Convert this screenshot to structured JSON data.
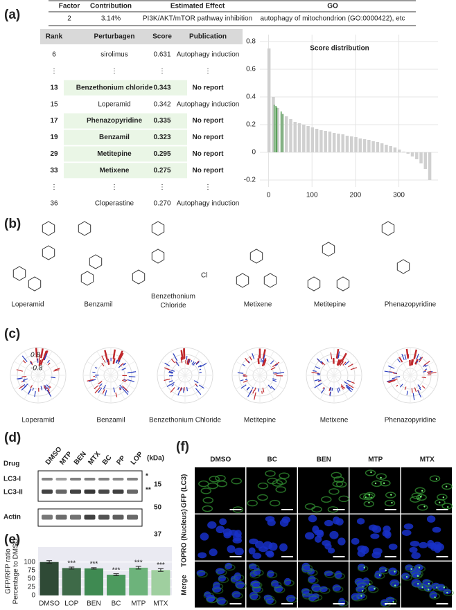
{
  "panel_labels": [
    "(a)",
    "(b)",
    "(c)",
    "(d)",
    "(e)",
    "(f)"
  ],
  "factor_table": {
    "headers": [
      "Factor",
      "Contribution",
      "Estimated Effect",
      "GO"
    ],
    "row": [
      "2",
      "3.14%",
      "PI3K/AKT/mTOR pathway inhibition",
      "autophagy of mitochondrion (GO:0000422), etc"
    ]
  },
  "rank_table": {
    "headers": [
      "Rank",
      "Perturbagen",
      "Score",
      "Publication"
    ],
    "rows": [
      [
        "6",
        "sirolimus",
        "0.631",
        "Autophagy induction"
      ],
      [
        "⋮",
        "⋮",
        "⋮",
        "⋮"
      ],
      [
        "13",
        "Benzethonium chloride",
        "0.343",
        "No report"
      ],
      [
        "15",
        "Loperamid",
        "0.342",
        "Autophagy induction"
      ],
      [
        "17",
        "Phenazopyridine",
        "0.335",
        "No report"
      ],
      [
        "19",
        "Benzamil",
        "0.323",
        "No report"
      ],
      [
        "29",
        "Metitepine",
        "0.295",
        "No report"
      ],
      [
        "33",
        "Metixene",
        "0.275",
        "No report"
      ],
      [
        "⋮",
        "⋮",
        "⋮",
        "⋮"
      ],
      [
        "36",
        "Cloperastine",
        "0.270",
        "Autophagy induction"
      ]
    ],
    "highlighted": [
      false,
      false,
      true,
      false,
      true,
      true,
      true,
      true,
      false,
      false
    ]
  },
  "chart_data": [
    {
      "type": "bar",
      "title": "Score distribution",
      "series": [
        {
          "name": "all",
          "color": "#d0d0d0",
          "x": [
            1,
            11,
            21,
            31,
            41,
            51,
            61,
            71,
            81,
            91,
            101,
            111,
            121,
            131,
            141,
            151,
            161,
            171,
            181,
            191,
            201,
            211,
            221,
            231,
            241,
            251,
            261,
            271,
            281,
            291,
            301,
            311,
            321,
            331,
            341,
            351,
            361,
            371
          ],
          "values": [
            0.75,
            0.4,
            0.32,
            0.28,
            0.26,
            0.24,
            0.22,
            0.21,
            0.2,
            0.19,
            0.18,
            0.17,
            0.16,
            0.155,
            0.15,
            0.14,
            0.135,
            0.13,
            0.12,
            0.115,
            0.11,
            0.1,
            0.095,
            0.09,
            0.08,
            0.075,
            0.065,
            0.055,
            0.045,
            0.035,
            0.02,
            0.005,
            -0.01,
            -0.03,
            -0.05,
            -0.08,
            -0.12,
            -0.2
          ]
        },
        {
          "name": "highlighted",
          "color": "#5aa05a",
          "x": [
            13,
            17,
            19,
            29,
            33
          ],
          "values": [
            0.343,
            0.335,
            0.323,
            0.295,
            0.275
          ]
        }
      ],
      "xlim": [
        -20,
        390
      ],
      "xticks": [
        0,
        100,
        200,
        300
      ],
      "ylim": [
        -0.25,
        0.85
      ],
      "yticks": [
        -0.2,
        0.0,
        0.2,
        0.4,
        0.6,
        0.8
      ],
      "grid": true
    },
    {
      "type": "bar",
      "ylabel": [
        "GFP/RFP ratio",
        "Percentage to DMSO"
      ],
      "categories": [
        "DMSO",
        "LOP",
        "BEN",
        "BC",
        "MTP",
        "MTX"
      ],
      "values": [
        100,
        82,
        81,
        62,
        83,
        76
      ],
      "errors": [
        4,
        3,
        2,
        3,
        4,
        4
      ],
      "significance": [
        null,
        "***",
        "***",
        "***",
        "***",
        "***"
      ],
      "colors": [
        "#2f4a36",
        "#3e6a48",
        "#3f8a52",
        "#4c9a5e",
        "#6db37b",
        "#9fcf9f"
      ],
      "ylim": [
        0,
        145
      ],
      "yticks": [
        0,
        25,
        50,
        75,
        100
      ],
      "grid": true
    }
  ],
  "structures": {
    "names": [
      "Loperamid",
      "Benzamil",
      "Benzethonium Chloride",
      "Metixene",
      "Metitepine",
      "Phenazopyridine"
    ],
    "counterion": "Cl"
  },
  "polar": {
    "names": [
      "Loperamid",
      "Benzamil",
      "Benzethonium Chloride",
      "Metitepine",
      "Metixene",
      "Phenazopyridine"
    ],
    "outer_label": "0.8",
    "inner_label": "-0.8"
  },
  "blot": {
    "row_label": "Drug",
    "lanes": [
      "DMSO",
      "MTP",
      "BEN",
      "MTX",
      "BC",
      "PP",
      "LOP"
    ],
    "unit": "(kDa)",
    "bands": [
      "LC3-I",
      "LC3-II",
      "Actin"
    ],
    "stars": [
      "*",
      "**"
    ],
    "markers": [
      "15",
      "50",
      "37"
    ]
  },
  "microscopy": {
    "columns": [
      "DMSO",
      "BC",
      "BEN",
      "MTP",
      "MTX"
    ],
    "rows": [
      "GFP (LC3)",
      "TOPRO (Nucleus)",
      "Merge"
    ]
  }
}
